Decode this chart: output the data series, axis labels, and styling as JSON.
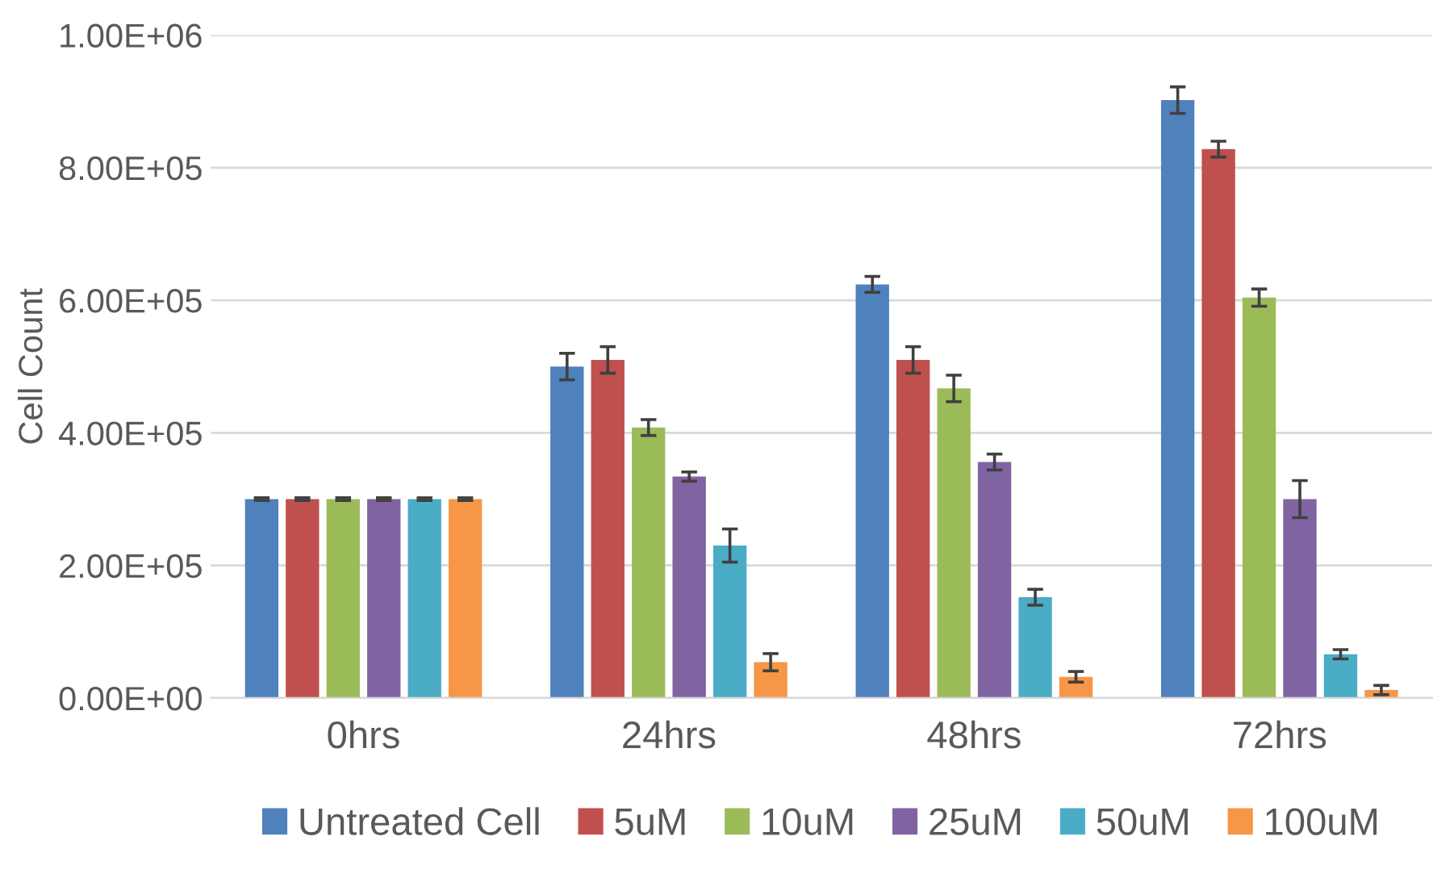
{
  "chart_data": {
    "type": "bar",
    "ylabel": "Cell Count",
    "categories": [
      "0hrs",
      "24hrs",
      "48hrs",
      "72hrs"
    ],
    "series": [
      {
        "name": "Untreated Cell",
        "color": "#4f81bd",
        "values": [
          300000,
          500000,
          624000,
          902000
        ],
        "errors": [
          2000,
          20000,
          12000,
          20000
        ]
      },
      {
        "name": "5uM",
        "color": "#c0504d",
        "values": [
          300000,
          510000,
          510000,
          828000
        ],
        "errors": [
          2000,
          20000,
          20000,
          12000
        ]
      },
      {
        "name": "10uM",
        "color": "#9bbb59",
        "values": [
          300000,
          408000,
          467000,
          604000
        ],
        "errors": [
          2000,
          12000,
          20000,
          13000
        ]
      },
      {
        "name": "25uM",
        "color": "#8064a2",
        "values": [
          300000,
          334000,
          356000,
          300000
        ],
        "errors": [
          2000,
          7000,
          12000,
          28000
        ]
      },
      {
        "name": "50uM",
        "color": "#4bacc6",
        "values": [
          300000,
          230000,
          152000,
          66000
        ],
        "errors": [
          2000,
          25000,
          12000,
          7000
        ]
      },
      {
        "name": "100uM",
        "color": "#f79646",
        "values": [
          300000,
          54000,
          32000,
          12000
        ],
        "errors": [
          2000,
          13000,
          8000,
          7000
        ]
      }
    ],
    "ylim": [
      0,
      1000000
    ],
    "yticks": [
      {
        "value": 0,
        "label": "0.00E+00"
      },
      {
        "value": 200000,
        "label": "2.00E+05"
      },
      {
        "value": 400000,
        "label": "4.00E+05"
      },
      {
        "value": 600000,
        "label": "6.00E+05"
      },
      {
        "value": 800000,
        "label": "8.00E+05"
      },
      {
        "value": 1000000,
        "label": "1.00E+06"
      }
    ],
    "grid": "y",
    "legend": "bottom"
  }
}
